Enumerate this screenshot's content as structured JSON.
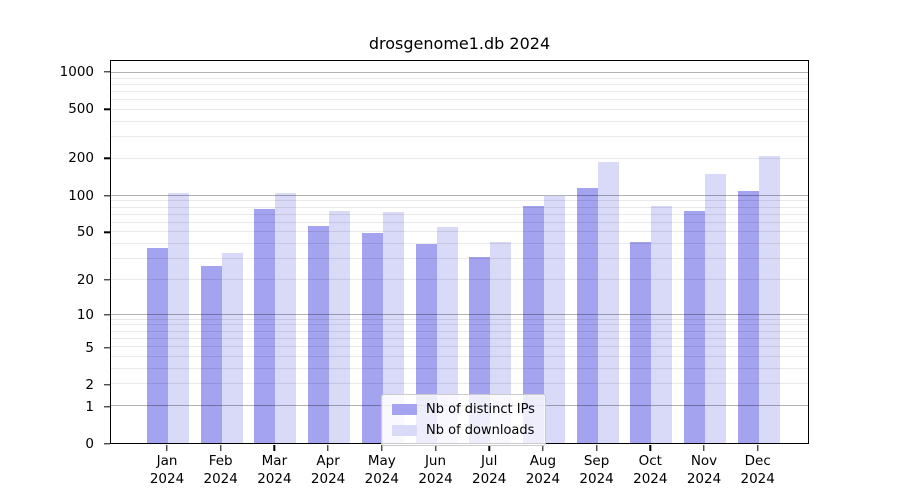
{
  "title": "drosgenome1.db 2024",
  "colors": {
    "distinct_ips": "#a3a3f0",
    "downloads": "#d9d9f8",
    "axis": "#000000",
    "grid_major": "#b3b3b3",
    "grid_minor": "#e9e9e9",
    "legend_border": "#cccccc",
    "background": "#ffffff"
  },
  "chart_data": {
    "type": "bar",
    "title": "drosgenome1.db 2024",
    "y_scale": "log1p",
    "ylim": [
      0,
      1250
    ],
    "y_ticks": [
      0,
      1,
      2,
      5,
      10,
      20,
      50,
      100,
      200,
      500,
      1000
    ],
    "grid": {
      "major": [
        1,
        10,
        100,
        1000
      ],
      "minor": [
        2,
        3,
        4,
        5,
        6,
        7,
        8,
        9,
        20,
        30,
        40,
        50,
        60,
        70,
        80,
        90,
        200,
        300,
        400,
        500,
        600,
        700,
        800,
        900
      ]
    },
    "categories": [
      "Jan 2024",
      "Feb 2024",
      "Mar 2024",
      "Apr 2024",
      "May 2024",
      "Jun 2024",
      "Jul 2024",
      "Aug 2024",
      "Sep 2024",
      "Oct 2024",
      "Nov 2024",
      "Dec 2024"
    ],
    "series": [
      {
        "name": "Nb of distinct IPs",
        "color": "#a3a3f0",
        "values": [
          37,
          26,
          78,
          57,
          49,
          40,
          31,
          83,
          115,
          42,
          75,
          110
        ]
      },
      {
        "name": "Nb of downloads",
        "color": "#d9d9f8",
        "values": [
          105,
          34,
          105,
          75,
          74,
          55,
          42,
          100,
          190,
          82,
          150,
          210
        ]
      }
    ],
    "legend_position": "bottom-center",
    "xlabel": "",
    "ylabel": ""
  }
}
